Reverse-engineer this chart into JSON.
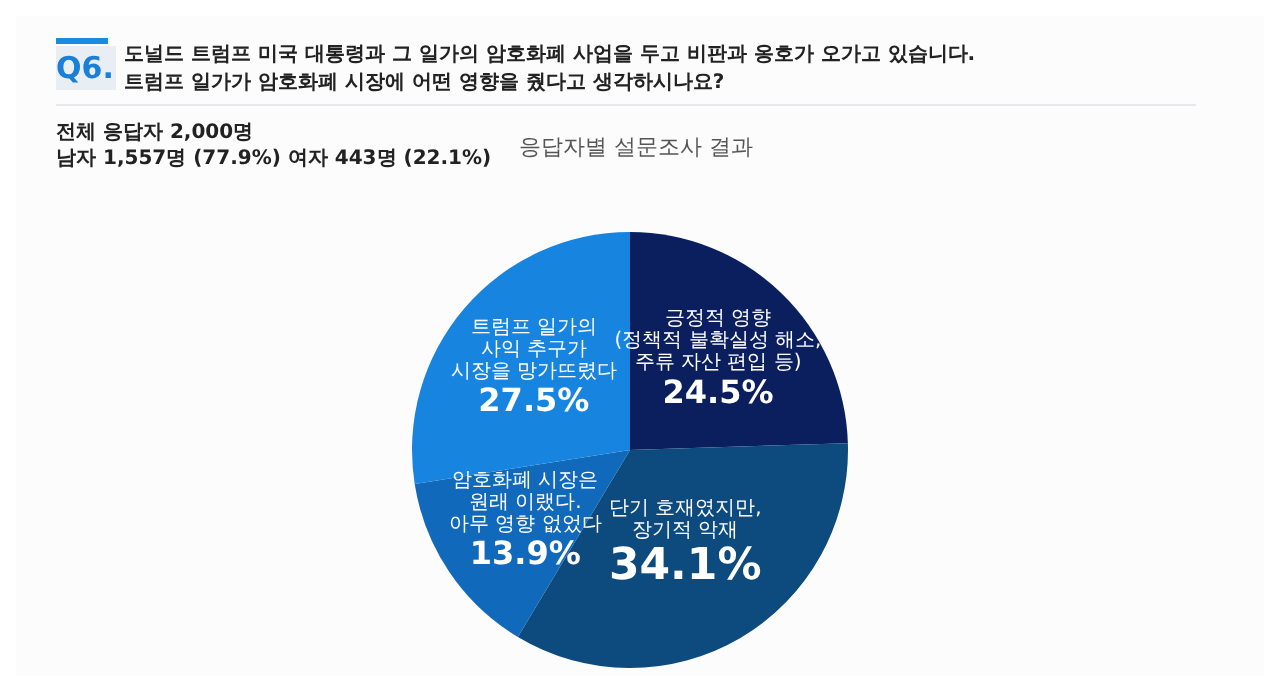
{
  "chart_data": {
    "type": "pie",
    "title": "도널드 트럼프 미국 대통령과 그 일가의 암호화폐 사업을 두고 비판과 옹호가 오가고 있습니다.\n트럼프 일가가 암호화폐 시장에 어떤 영향을 줬다고 생각하시나요?",
    "subtitle": "응답자별 설문조사 결과",
    "annotations": [
      "Q6.",
      "전체 응답자 2,000명",
      "남자 1,557명 (77.9%) 여자 443명 (22.1%)"
    ],
    "categories": [
      "긍정적 영향\n(정책적 불확실성 해소,\n주류 자산 편입 등)",
      "단기 호재였지만,\n장기적 악재",
      "암호화폐 시장은\n원래 이랬다.\n아무 영향 없었다",
      "트럼프 일가의\n사익 추구가\n시장을 망가뜨렸다"
    ],
    "values": [
      24.5,
      34.1,
      13.9,
      27.5
    ],
    "value_labels": [
      "24.5%",
      "34.1%",
      "13.9%",
      "27.5%"
    ],
    "colors": [
      "#0b1f5e",
      "#0d4a7e",
      "#1069bb",
      "#1784e0"
    ],
    "legend": false
  }
}
